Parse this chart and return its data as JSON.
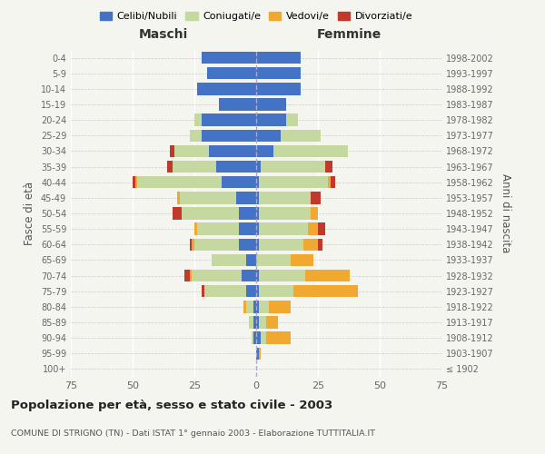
{
  "age_groups": [
    "100+",
    "95-99",
    "90-94",
    "85-89",
    "80-84",
    "75-79",
    "70-74",
    "65-69",
    "60-64",
    "55-59",
    "50-54",
    "45-49",
    "40-44",
    "35-39",
    "30-34",
    "25-29",
    "20-24",
    "15-19",
    "10-14",
    "5-9",
    "0-4"
  ],
  "birth_years": [
    "≤ 1902",
    "1903-1907",
    "1908-1912",
    "1913-1917",
    "1918-1922",
    "1923-1927",
    "1928-1932",
    "1933-1937",
    "1938-1942",
    "1943-1947",
    "1948-1952",
    "1953-1957",
    "1958-1962",
    "1963-1967",
    "1968-1972",
    "1973-1977",
    "1978-1982",
    "1983-1987",
    "1988-1992",
    "1993-1997",
    "1998-2002"
  ],
  "maschi": {
    "celibi": [
      0,
      0,
      1,
      1,
      1,
      4,
      6,
      4,
      7,
      7,
      7,
      8,
      14,
      16,
      19,
      22,
      22,
      15,
      24,
      20,
      22
    ],
    "coniugati": [
      0,
      0,
      1,
      2,
      3,
      17,
      20,
      14,
      18,
      17,
      23,
      23,
      34,
      18,
      14,
      5,
      3,
      0,
      0,
      0,
      0
    ],
    "vedovi": [
      0,
      0,
      0,
      0,
      1,
      0,
      1,
      0,
      1,
      1,
      0,
      1,
      1,
      0,
      0,
      0,
      0,
      0,
      0,
      0,
      0
    ],
    "divorziati": [
      0,
      0,
      0,
      0,
      0,
      1,
      2,
      0,
      1,
      0,
      4,
      0,
      1,
      2,
      2,
      0,
      0,
      0,
      0,
      0,
      0
    ]
  },
  "femmine": {
    "nubili": [
      0,
      1,
      2,
      1,
      1,
      1,
      1,
      0,
      1,
      1,
      1,
      1,
      1,
      2,
      7,
      10,
      12,
      12,
      18,
      18,
      18
    ],
    "coniugate": [
      0,
      0,
      2,
      3,
      4,
      14,
      19,
      14,
      18,
      20,
      21,
      21,
      28,
      26,
      30,
      16,
      5,
      0,
      0,
      0,
      0
    ],
    "vedove": [
      0,
      1,
      10,
      5,
      9,
      26,
      18,
      9,
      6,
      4,
      3,
      0,
      1,
      0,
      0,
      0,
      0,
      0,
      0,
      0,
      0
    ],
    "divorziate": [
      0,
      0,
      0,
      0,
      0,
      0,
      0,
      0,
      2,
      3,
      0,
      4,
      2,
      3,
      0,
      0,
      0,
      0,
      0,
      0,
      0
    ]
  },
  "colors": {
    "celibi": "#4472c4",
    "coniugati": "#c5d8a0",
    "vedovi": "#f0a830",
    "divorziati": "#c0392b"
  },
  "xlim": 75,
  "title": "Popolazione per età, sesso e stato civile - 2003",
  "subtitle": "COMUNE DI STRIGNO (TN) - Dati ISTAT 1° gennaio 2003 - Elaborazione TUTTITALIA.IT",
  "ylabel_left": "Fasce di età",
  "ylabel_right": "Anni di nascita",
  "xlabel_left": "Maschi",
  "xlabel_right": "Femmine",
  "legend_labels": [
    "Celibi/Nubili",
    "Coniugati/e",
    "Vedovi/e",
    "Divorziati/e"
  ],
  "bg_color": "#f5f5f0"
}
